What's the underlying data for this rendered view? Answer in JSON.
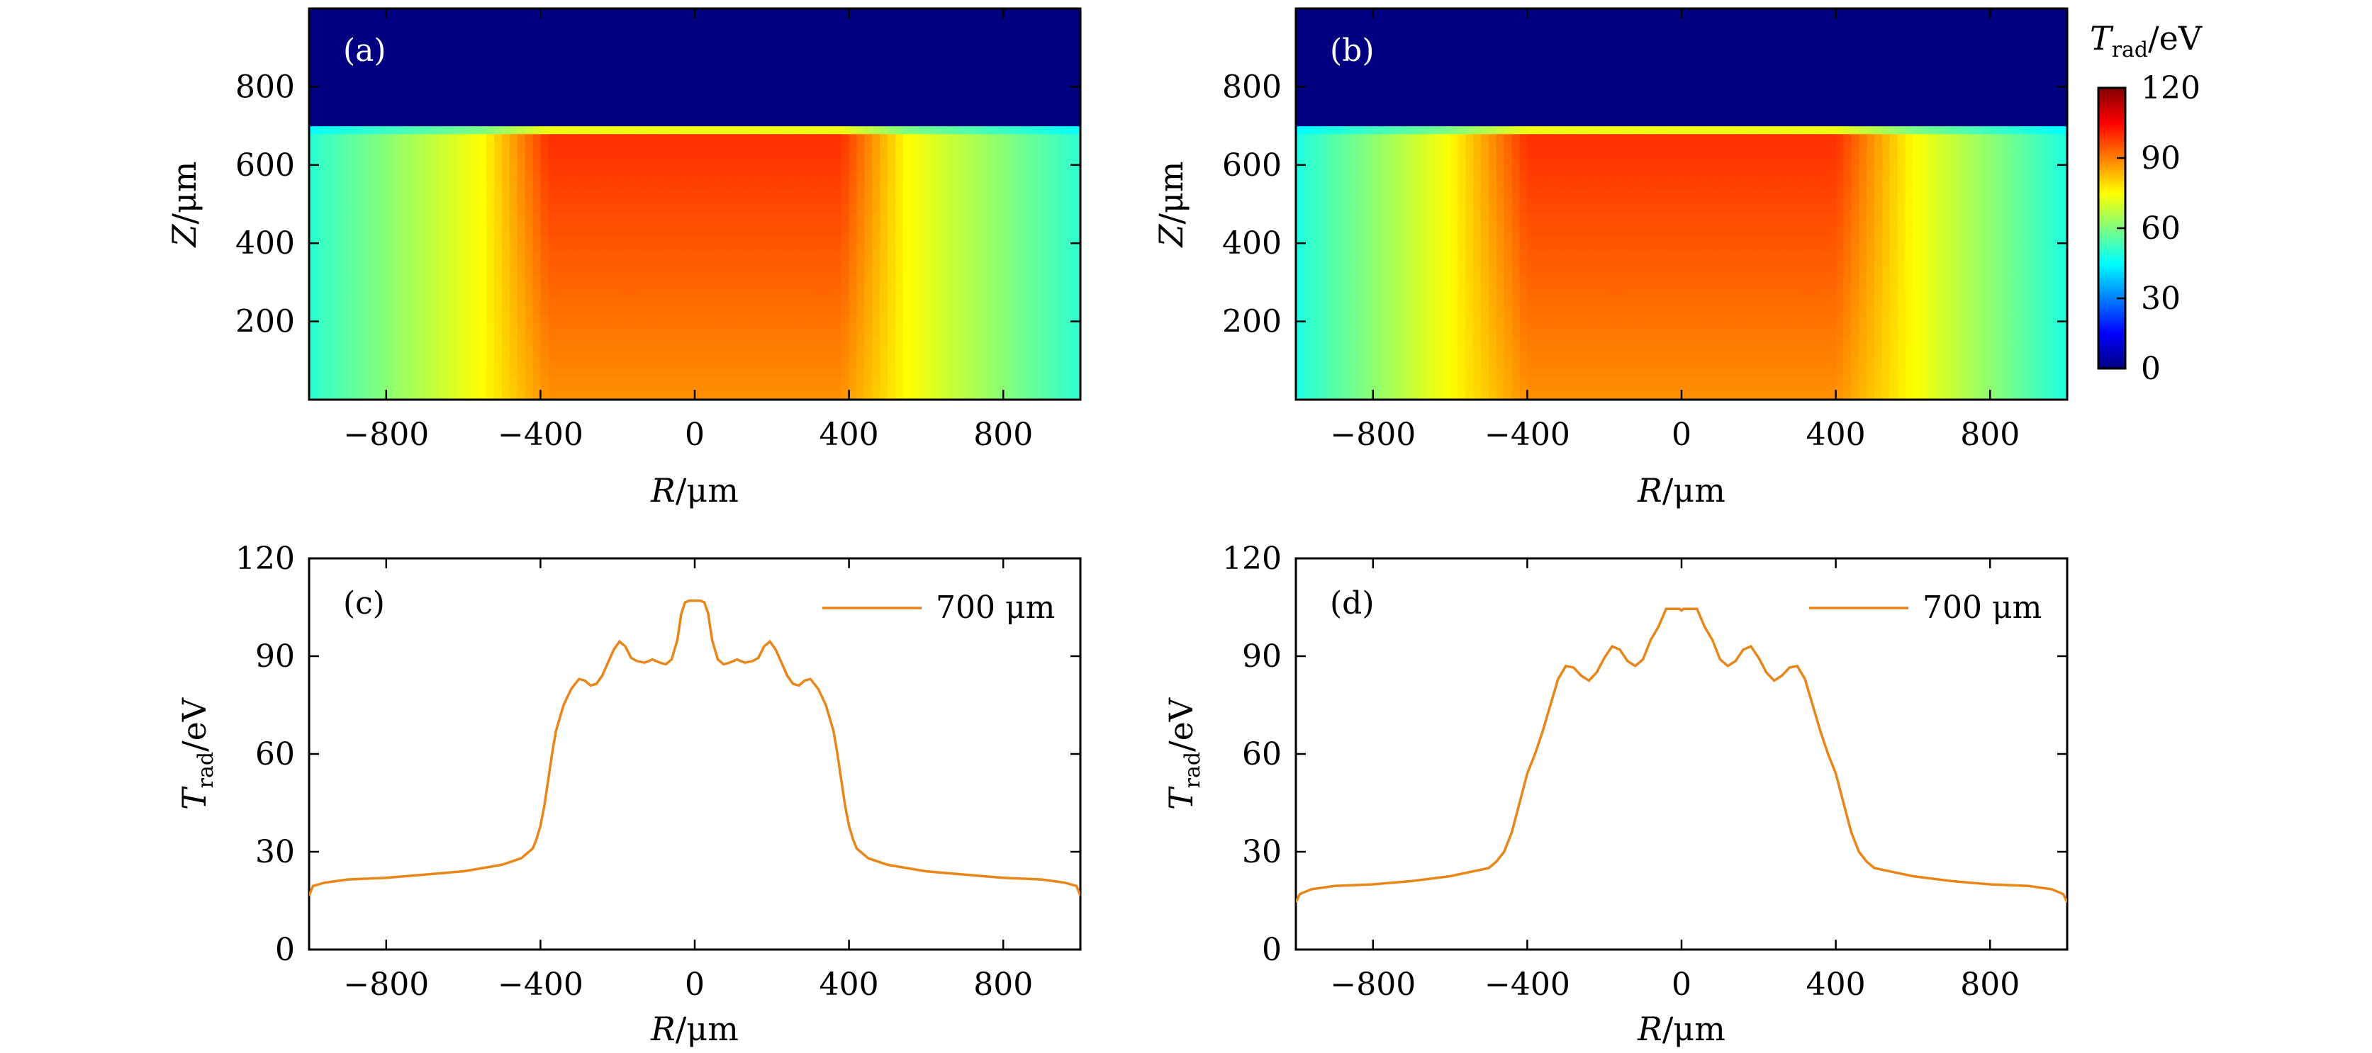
{
  "chart_data": [
    {
      "panel": "(a)",
      "type": "heatmap",
      "xlabel_italic": "R",
      "xlabel_unit": "/μm",
      "ylabel_italic": "Z",
      "ylabel_unit": "/μm",
      "xlim": [
        -1000,
        1000
      ],
      "ylim": [
        0,
        1000
      ],
      "xticks": [
        "−800",
        "−400",
        "0",
        "400",
        "800"
      ],
      "xtick_values": [
        -800,
        -400,
        0,
        400,
        800
      ],
      "yticks": [
        "200",
        "400",
        "600",
        "800"
      ],
      "ytick_values": [
        200,
        400,
        600,
        800
      ],
      "field": {
        "surface_z": 700,
        "plateau_inner_r": 380,
        "plateau_edge_r": 550,
        "plateau_T": 100,
        "ring_T": 75,
        "outer_T": 50,
        "above_surface_T": 0
      }
    },
    {
      "panel": "(b)",
      "type": "heatmap",
      "xlabel_italic": "R",
      "xlabel_unit": "/μm",
      "ylabel_italic": "Z",
      "ylabel_unit": "/μm",
      "xlim": [
        -1000,
        1000
      ],
      "ylim": [
        0,
        1000
      ],
      "xticks": [
        "−800",
        "−400",
        "0",
        "400",
        "800"
      ],
      "xtick_values": [
        -800,
        -400,
        0,
        400,
        800
      ],
      "yticks": [
        "200",
        "400",
        "600",
        "800"
      ],
      "ytick_values": [
        200,
        400,
        600,
        800
      ],
      "field": {
        "surface_z": 700,
        "plateau_inner_r": 400,
        "plateau_edge_r": 600,
        "plateau_T": 100,
        "ring_T": 75,
        "outer_T": 45,
        "above_surface_T": 0
      },
      "colorbar": {
        "title_main": "T",
        "title_sub": "rad",
        "title_unit": "/eV",
        "ticks": [
          "120",
          "90",
          "60",
          "30",
          "0"
        ],
        "tick_values": [
          120,
          90,
          60,
          30,
          0
        ],
        "range": [
          0,
          120
        ]
      }
    },
    {
      "panel": "(c)",
      "type": "line",
      "xlabel_italic": "R",
      "xlabel_unit": "/μm",
      "ylabel_main": "T",
      "ylabel_sub": "rad",
      "ylabel_unit": "/eV",
      "xlim": [
        -1000,
        1000
      ],
      "ylim": [
        0,
        120
      ],
      "xticks": [
        "−800",
        "−400",
        "0",
        "400",
        "800"
      ],
      "xtick_values": [
        -800,
        -400,
        0,
        400,
        800
      ],
      "yticks": [
        "0",
        "30",
        "60",
        "90",
        "120"
      ],
      "ytick_values": [
        0,
        30,
        60,
        90,
        120
      ],
      "series": [
        {
          "name": "700 μm",
          "color": "#e8861a",
          "x": [
            -1000,
            -990,
            -960,
            -900,
            -800,
            -700,
            -600,
            -500,
            -450,
            -420,
            -410,
            -400,
            -390,
            -380,
            -370,
            -360,
            -340,
            -320,
            -300,
            -285,
            -270,
            -255,
            -240,
            -225,
            -210,
            -195,
            -180,
            -165,
            -150,
            -130,
            -110,
            -90,
            -75,
            -60,
            -45,
            -35,
            -25,
            -15,
            0,
            15,
            25,
            35,
            45,
            60,
            75,
            90,
            110,
            130,
            150,
            165,
            180,
            195,
            210,
            225,
            240,
            255,
            270,
            285,
            300,
            320,
            340,
            360,
            370,
            380,
            390,
            400,
            410,
            420,
            450,
            500,
            600,
            700,
            800,
            900,
            960,
            990,
            1000
          ],
          "y": [
            16.5,
            19.5,
            20.5,
            21.5,
            22,
            23,
            24,
            26,
            28,
            31,
            34,
            38,
            44,
            52,
            60,
            67,
            75,
            80,
            83,
            82.5,
            81,
            81.5,
            84,
            88,
            92,
            94.5,
            93,
            89.5,
            88.5,
            88,
            89,
            88,
            87.5,
            89,
            95,
            103,
            106.5,
            107,
            107,
            107,
            106.5,
            103,
            95,
            89,
            87.5,
            88,
            89,
            88,
            88.5,
            89.5,
            93,
            94.5,
            92,
            88,
            84,
            81.5,
            81,
            82.5,
            83,
            80,
            75,
            67,
            60,
            52,
            44,
            38,
            34,
            31,
            28,
            26,
            24,
            23,
            22,
            21.5,
            20.5,
            19.5,
            16.5
          ]
        }
      ]
    },
    {
      "panel": "(d)",
      "type": "line",
      "xlabel_italic": "R",
      "xlabel_unit": "/μm",
      "ylabel_main": "T",
      "ylabel_sub": "rad",
      "ylabel_unit": "/eV",
      "xlim": [
        -1000,
        1000
      ],
      "ylim": [
        0,
        120
      ],
      "xticks": [
        "−800",
        "−400",
        "0",
        "400",
        "800"
      ],
      "xtick_values": [
        -800,
        -400,
        0,
        400,
        800
      ],
      "yticks": [
        "0",
        "30",
        "60",
        "90",
        "120"
      ],
      "ytick_values": [
        0,
        30,
        60,
        90,
        120
      ],
      "series": [
        {
          "name": "700 μm",
          "color": "#e8861a",
          "x": [
            -1000,
            -990,
            -960,
            -900,
            -800,
            -700,
            -600,
            -500,
            -480,
            -460,
            -440,
            -420,
            -400,
            -380,
            -360,
            -340,
            -320,
            -300,
            -280,
            -260,
            -240,
            -220,
            -200,
            -180,
            -160,
            -140,
            -120,
            -100,
            -80,
            -60,
            -40,
            -20,
            -5,
            0,
            5,
            20,
            40,
            60,
            80,
            100,
            120,
            140,
            160,
            180,
            200,
            220,
            240,
            260,
            280,
            300,
            320,
            340,
            360,
            380,
            400,
            420,
            440,
            460,
            480,
            500,
            600,
            700,
            800,
            900,
            960,
            990,
            1000
          ],
          "y": [
            14.5,
            17,
            18.5,
            19.5,
            20,
            21,
            22.5,
            25,
            27,
            30,
            36,
            45,
            54,
            60,
            67,
            75,
            83,
            87,
            86.5,
            84,
            82.5,
            85,
            89.5,
            93,
            92,
            88.5,
            87,
            89,
            95,
            99,
            104.5,
            104.5,
            104.5,
            104,
            104.5,
            104.5,
            104.5,
            99,
            95,
            89,
            87,
            88.5,
            92,
            93,
            89.5,
            85,
            82.5,
            84,
            86.5,
            87,
            83,
            75,
            67,
            60,
            54,
            45,
            36,
            30,
            27,
            25,
            22.5,
            21,
            20,
            19.5,
            18.5,
            17,
            14.5
          ]
        }
      ]
    }
  ]
}
